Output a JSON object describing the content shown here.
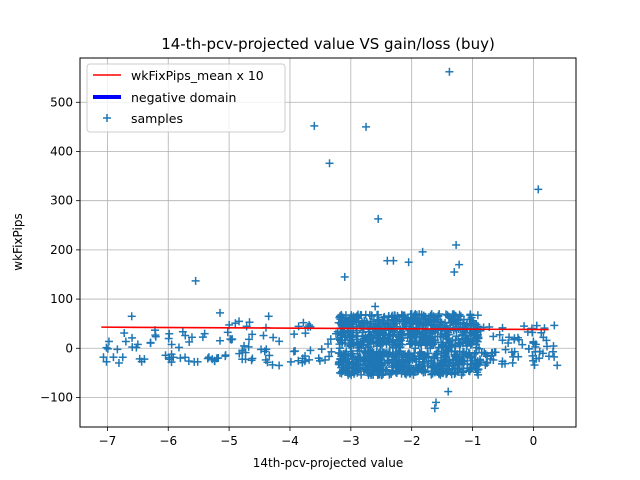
{
  "chart_data": {
    "type": "scatter",
    "title": "14-th-pcv-projected value VS gain/loss (buy)",
    "xlabel": "14th-pcv-projected value",
    "ylabel": "wkFixPips",
    "xlim": [
      -7.45,
      0.7
    ],
    "ylim": [
      -160,
      590
    ],
    "xticks": [
      -7,
      -6,
      -5,
      -4,
      -3,
      -2,
      -1,
      0
    ],
    "xtick_labels": [
      "−7",
      "−6",
      "−5",
      "−4",
      "−3",
      "−2",
      "−1",
      "0"
    ],
    "yticks": [
      -100,
      0,
      100,
      200,
      300,
      400,
      500
    ],
    "ytick_labels": [
      "−100",
      "0",
      "100",
      "200",
      "300",
      "400",
      "500"
    ],
    "grid": true,
    "legend": {
      "placement": "upper-left",
      "entries": [
        "wkFixPips_mean x 10",
        "negative domain",
        "samples"
      ]
    },
    "colors": {
      "mean_line": "#ff0000",
      "negative_domain": "#0000ff",
      "samples": "#1f77b4"
    },
    "series": [
      {
        "name": "wkFixPips_mean x 10",
        "kind": "line",
        "x": [
          -7.1,
          0.25
        ],
        "y": [
          43,
          38
        ]
      },
      {
        "name": "negative domain",
        "kind": "line",
        "x": [],
        "y": []
      },
      {
        "name": "samples",
        "kind": "scatter",
        "marker": "plus",
        "outliers": {
          "x": [
            -1.38,
            -3.6,
            -2.75,
            -3.35,
            0.08,
            -2.55,
            -1.27,
            -1.82,
            -2.05,
            -1.22,
            -1.3,
            -2.3,
            -2.4,
            -3.1,
            -5.55,
            -5.15,
            -2.6,
            -6.6,
            -4.35,
            -1.4,
            -1.62,
            -1.6
          ],
          "y": [
            562,
            452,
            450,
            376,
            323,
            263,
            210,
            196,
            175,
            170,
            155,
            178,
            178,
            145,
            137,
            72,
            85,
            65,
            65,
            -88,
            -122,
            -110
          ]
        },
        "clusters": [
          {
            "x_range": [
              -7.1,
              -5.0
            ],
            "upper_y": [
              -8,
              38
            ],
            "lower_y": [
              -30,
              -12
            ],
            "count": 55
          },
          {
            "x_range": [
              -5.0,
              -3.2
            ],
            "upper_y": [
              -8,
              55
            ],
            "lower_y": [
              -35,
              -5
            ],
            "count": 60
          },
          {
            "x_range": [
              -3.2,
              -0.9
            ],
            "upper_y": [
              0,
              70
            ],
            "lower_y": [
              -55,
              -5
            ],
            "count": 1100
          },
          {
            "x_range": [
              -0.9,
              0.4
            ],
            "upper_y": [
              -5,
              50
            ],
            "lower_y": [
              -35,
              -5
            ],
            "count": 70
          }
        ]
      }
    ]
  }
}
